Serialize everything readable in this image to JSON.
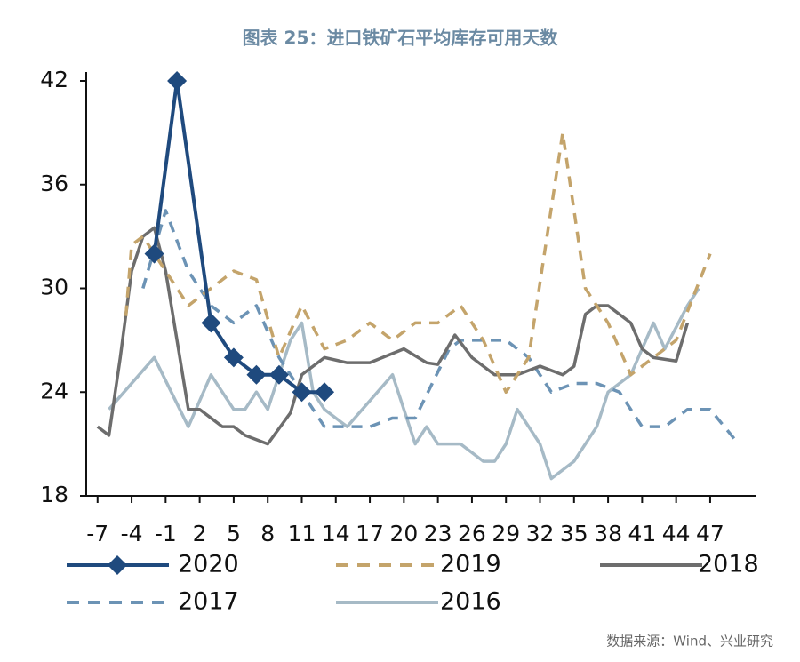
{
  "chart_data": {
    "type": "line",
    "title": "图表 25：进口铁矿石平均库存可用天数",
    "source": "数据来源：Wind、兴业研究",
    "xlim": [
      -8,
      51
    ],
    "ylim": [
      18,
      42
    ],
    "xticks": [
      -7,
      -4,
      -1,
      2,
      5,
      8,
      11,
      14,
      17,
      20,
      23,
      26,
      29,
      32,
      35,
      38,
      41,
      44,
      47
    ],
    "yticks": [
      18,
      24,
      30,
      36,
      42
    ],
    "series": [
      {
        "name": "2020",
        "color": "#1f4a7e",
        "dash": false,
        "marker": "diamond",
        "x": [
          -2,
          0,
          3,
          5,
          7,
          9,
          11,
          13
        ],
        "values": [
          32,
          42,
          28,
          26,
          25,
          25,
          24,
          24
        ]
      },
      {
        "name": "2019",
        "color": "#c4a46b",
        "dash": true,
        "marker": null,
        "x": [
          -4.5,
          -4,
          -3,
          -1,
          1,
          3,
          5,
          7,
          9,
          11,
          13,
          15,
          17,
          19,
          21,
          23,
          25,
          27,
          29,
          31,
          34,
          36,
          38,
          40,
          42,
          44,
          47
        ],
        "values": [
          28.4,
          32.5,
          33,
          31,
          29,
          30,
          31,
          30.5,
          26,
          29,
          26.5,
          27,
          28,
          27,
          28,
          28,
          29,
          27,
          24,
          26,
          39,
          30,
          28,
          25,
          26,
          27,
          32
        ]
      },
      {
        "name": "2018",
        "color": "#6d6d6d",
        "dash": false,
        "marker": null,
        "x": [
          -7,
          -6,
          -5,
          -4,
          -3,
          -2,
          -1,
          0,
          1,
          2,
          3,
          4,
          5,
          6,
          8,
          10,
          11,
          13,
          15,
          17,
          20,
          22,
          23,
          24.5,
          26,
          28,
          30,
          32,
          34,
          35,
          36,
          37,
          38,
          40,
          41,
          42,
          44,
          45
        ],
        "values": [
          22,
          21.5,
          26,
          31,
          33,
          33.5,
          31,
          27,
          23,
          23,
          22.5,
          22,
          22,
          21.5,
          21,
          22.8,
          25,
          26,
          25.7,
          25.7,
          26.5,
          25.7,
          25.6,
          27.3,
          26,
          25,
          25,
          25.5,
          25,
          25.5,
          28.5,
          29,
          29,
          28,
          26.5,
          26,
          25.8,
          28
        ]
      },
      {
        "name": "2017",
        "color": "#6c93b5",
        "dash": true,
        "marker": null,
        "x": [
          -3,
          -1,
          1,
          3,
          5,
          7,
          9,
          11,
          13,
          15,
          17,
          19,
          21,
          24,
          25,
          27,
          29,
          31,
          33,
          35,
          37,
          39,
          41,
          43,
          45,
          47,
          49.5
        ],
        "values": [
          30,
          34.5,
          31,
          29,
          28,
          29,
          26,
          24,
          22,
          22,
          22,
          22.5,
          22.5,
          26.5,
          27,
          27,
          27,
          26,
          24,
          24.5,
          24.5,
          24,
          22,
          22,
          23,
          23,
          21
        ]
      },
      {
        "name": "2016",
        "color": "#a6bac6",
        "dash": false,
        "marker": null,
        "x": [
          -6,
          -2,
          1,
          3,
          5,
          6,
          7,
          8,
          10,
          11,
          12,
          13,
          15,
          17,
          19,
          21,
          22,
          23,
          25,
          27,
          28,
          29,
          30,
          32,
          33,
          35,
          37,
          38,
          40,
          42,
          43,
          45,
          46
        ],
        "values": [
          23,
          26,
          22,
          25,
          23,
          23,
          24,
          23,
          27,
          28,
          24,
          23,
          22,
          23.5,
          25,
          21,
          22,
          21,
          21,
          20,
          20,
          21,
          23,
          21,
          19,
          20,
          22,
          24,
          25,
          28,
          26.5,
          29,
          30
        ]
      }
    ]
  }
}
